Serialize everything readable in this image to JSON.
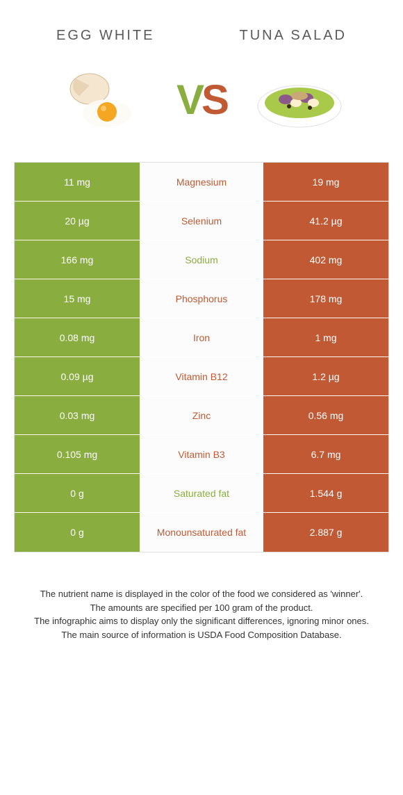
{
  "header": {
    "left_title": "Egg white",
    "right_title": "Tuna salad"
  },
  "vs": {
    "v": "V",
    "s": "S"
  },
  "colors": {
    "left": "#8aad3f",
    "right": "#c15a34",
    "mid_bg": "#fcfcfc",
    "text_dim": "#5a5a5a"
  },
  "rows": [
    {
      "nutrient": "Magnesium",
      "left": "11 mg",
      "right": "19 mg",
      "winner": "right"
    },
    {
      "nutrient": "Selenium",
      "left": "20 µg",
      "right": "41.2 µg",
      "winner": "right"
    },
    {
      "nutrient": "Sodium",
      "left": "166 mg",
      "right": "402 mg",
      "winner": "left"
    },
    {
      "nutrient": "Phosphorus",
      "left": "15 mg",
      "right": "178 mg",
      "winner": "right"
    },
    {
      "nutrient": "Iron",
      "left": "0.08 mg",
      "right": "1 mg",
      "winner": "right"
    },
    {
      "nutrient": "Vitamin B12",
      "left": "0.09 µg",
      "right": "1.2 µg",
      "winner": "right"
    },
    {
      "nutrient": "Zinc",
      "left": "0.03 mg",
      "right": "0.56 mg",
      "winner": "right"
    },
    {
      "nutrient": "Vitamin B3",
      "left": "0.105 mg",
      "right": "6.7 mg",
      "winner": "right"
    },
    {
      "nutrient": "Saturated fat",
      "left": "0 g",
      "right": "1.544 g",
      "winner": "left"
    },
    {
      "nutrient": "Monounsaturated fat",
      "left": "0 g",
      "right": "2.887 g",
      "winner": "right"
    }
  ],
  "footer": {
    "line1": "The nutrient name is displayed in the color of the food we considered as 'winner'.",
    "line2": "The amounts are specified per 100 gram of the product.",
    "line3": "The infographic aims to display only the significant differences, ignoring minor ones.",
    "line4": "The main source of information is USDA Food Composition Database."
  }
}
